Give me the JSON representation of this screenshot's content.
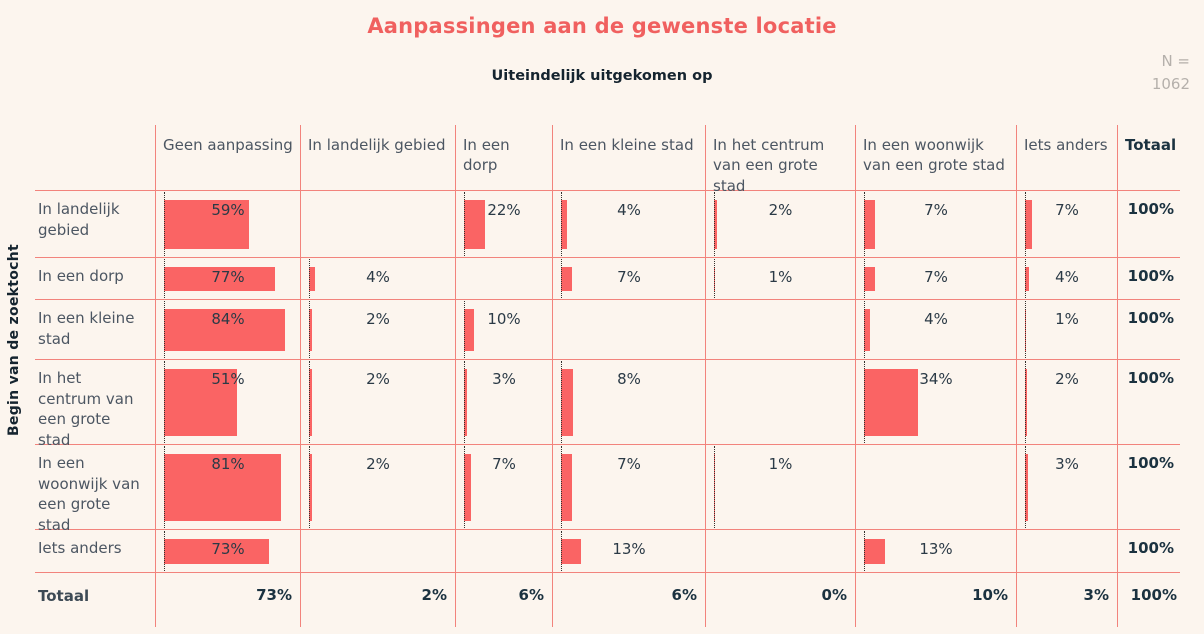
{
  "page": {
    "background": "#fcf5ee"
  },
  "sample": {
    "label": "N =",
    "value": "1062"
  },
  "chart_data": {
    "type": "table",
    "subtype": "crosstab-with-bars",
    "title": "Aanpassingen aan de gewenste locatie",
    "subtitle": "Uiteindelijk uitgekomen op",
    "row_axis_label": "Begin van de zoektocht",
    "sample_label": "N =",
    "sample_value": "1062",
    "bar_scale_note": "bar width = percentage of column width, baseline dotted at cell left",
    "columns": [
      "Geen aanpassing",
      "In landelijk gebied",
      "In een dorp",
      "In een kleine stad",
      "In het centrum van een grote stad",
      "In een woonwijk van een grote stad",
      "Iets anders",
      "Totaal"
    ],
    "rows": [
      {
        "label": "In landelijk gebied",
        "values": [
          59,
          null,
          22,
          4,
          2,
          7,
          7
        ],
        "labels": [
          "59%",
          "",
          "22%",
          "4%",
          "2%",
          "7%",
          "7%"
        ],
        "total": "100%"
      },
      {
        "label": "In een dorp",
        "values": [
          77,
          4,
          null,
          7,
          1,
          7,
          4
        ],
        "labels": [
          "77%",
          "4%",
          "",
          "7%",
          "1%",
          "7%",
          "4%"
        ],
        "total": "100%"
      },
      {
        "label": "In een kleine stad",
        "values": [
          84,
          2,
          10,
          null,
          null,
          4,
          1
        ],
        "labels": [
          "84%",
          "2%",
          "10%",
          "",
          "",
          "4%",
          "1%"
        ],
        "total": "100%"
      },
      {
        "label": "In het centrum van een grote stad",
        "values": [
          51,
          2,
          3,
          8,
          null,
          34,
          2
        ],
        "labels": [
          "51%",
          "2%",
          "3%",
          "8%",
          "",
          "34%",
          "2%"
        ],
        "total": "100%"
      },
      {
        "label": "In een woonwijk van een grote stad",
        "values": [
          81,
          2,
          7,
          7,
          1,
          null,
          3
        ],
        "labels": [
          "81%",
          "2%",
          "7%",
          "7%",
          "1%",
          "",
          "3%"
        ],
        "total": "100%"
      },
      {
        "label": "Iets anders",
        "values": [
          73,
          null,
          null,
          13,
          null,
          13,
          null
        ],
        "labels": [
          "73%",
          "",
          "",
          "13%",
          "",
          "13%",
          ""
        ],
        "total": "100%"
      }
    ],
    "totals": {
      "label": "Totaal",
      "values": [
        "73%",
        "2%",
        "6%",
        "6%",
        "0%",
        "10%",
        "3%",
        "100%"
      ]
    },
    "colors": {
      "bar": "#fa6464",
      "grid_line": "#f2837c",
      "title": "#f0605f",
      "text": "#4c5662",
      "value_text": "#2b3a46",
      "bold_text": "#1b3240",
      "muted_text": "#b5b0ab",
      "background": "#fcf5ee"
    }
  }
}
